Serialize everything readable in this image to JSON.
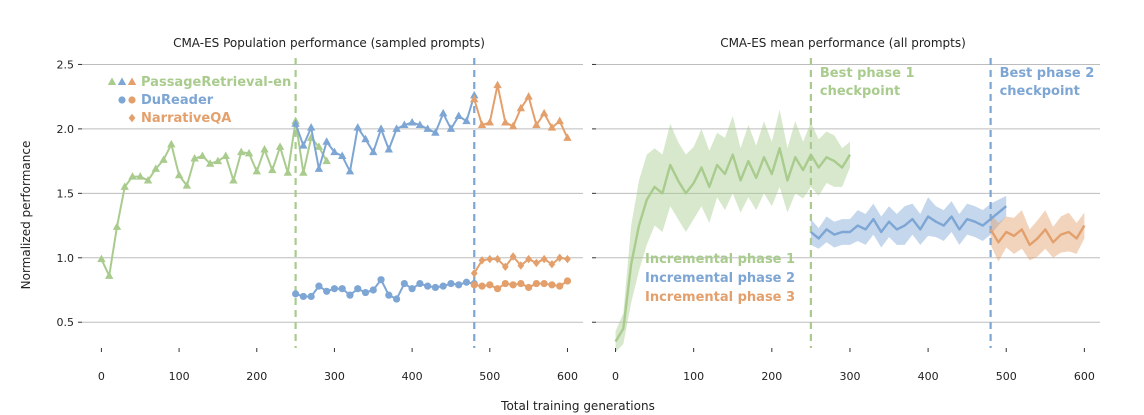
{
  "figure": {
    "ylabel": "Normalized performance",
    "xlabel": "Total training generations"
  },
  "colors": {
    "phase1": "#a9cc8e",
    "phase2": "#7ea6d4",
    "phase3": "#e3a06c",
    "grid": "#bdbdbd",
    "axis": "#333333"
  },
  "chart_data": [
    {
      "type": "line",
      "title": "CMA-ES Population performance (sampled prompts)",
      "xlim": [
        -25,
        620
      ],
      "ylim": [
        0.3,
        2.55
      ],
      "xticks": [
        0,
        100,
        200,
        300,
        400,
        500,
        600
      ],
      "yticks": [
        0.5,
        1.0,
        1.5,
        2.0,
        2.5
      ],
      "ytick_labels": [
        "0.5",
        "1.0",
        "1.5",
        "2.0",
        "2.5"
      ],
      "grid": "horizontal",
      "vlines": [
        {
          "x": 250,
          "color": "phase1"
        },
        {
          "x": 480,
          "color": "phase2"
        }
      ],
      "legend": {
        "position": "top-left",
        "entries": [
          {
            "label": "PassageRetrieval-en",
            "marker": "triangle",
            "colors": [
              "phase1",
              "phase2",
              "phase3"
            ]
          },
          {
            "label": "DuReader",
            "marker": "circle",
            "colors": [
              "phase2",
              "phase3"
            ]
          },
          {
            "label": "NarrativeQA",
            "marker": "diamond",
            "colors": [
              "phase3"
            ]
          }
        ]
      },
      "series": [
        {
          "name": "PassageRetrieval-en",
          "phase": 1,
          "color": "phase1",
          "marker": "triangle",
          "x": [
            0,
            10,
            20,
            30,
            40,
            50,
            60,
            70,
            80,
            90,
            100,
            110,
            120,
            130,
            140,
            150,
            160,
            170,
            180,
            190,
            200,
            210,
            220,
            230,
            240,
            250,
            260,
            270,
            280,
            290
          ],
          "y": [
            0.99,
            0.86,
            1.24,
            1.55,
            1.63,
            1.63,
            1.6,
            1.69,
            1.76,
            1.88,
            1.64,
            1.56,
            1.77,
            1.79,
            1.73,
            1.75,
            1.79,
            1.6,
            1.82,
            1.81,
            1.67,
            1.84,
            1.68,
            1.86,
            1.66,
            2.06,
            1.66,
            1.93,
            1.86,
            1.75
          ]
        },
        {
          "name": "PassageRetrieval-en",
          "phase": 2,
          "color": "phase2",
          "marker": "triangle",
          "x": [
            250,
            260,
            270,
            280,
            290,
            300,
            310,
            320,
            330,
            340,
            350,
            360,
            370,
            380,
            390,
            400,
            410,
            420,
            430,
            440,
            450,
            460,
            470,
            480
          ],
          "y": [
            2.04,
            1.87,
            2.01,
            1.69,
            1.9,
            1.82,
            1.79,
            1.67,
            2.01,
            1.92,
            1.82,
            2.0,
            1.84,
            2.0,
            2.03,
            2.05,
            2.03,
            2.0,
            1.97,
            2.12,
            2.0,
            2.1,
            2.06,
            2.26
          ]
        },
        {
          "name": "PassageRetrieval-en",
          "phase": 3,
          "color": "phase3",
          "marker": "triangle",
          "x": [
            480,
            490,
            500,
            510,
            520,
            530,
            540,
            550,
            560,
            570,
            580,
            590,
            600
          ],
          "y": [
            2.23,
            2.03,
            2.05,
            2.34,
            2.05,
            2.02,
            2.16,
            2.25,
            2.03,
            2.12,
            2.01,
            2.06,
            1.93
          ]
        },
        {
          "name": "DuReader",
          "phase": 2,
          "color": "phase2",
          "marker": "circle",
          "x": [
            250,
            260,
            270,
            280,
            290,
            300,
            310,
            320,
            330,
            340,
            350,
            360,
            370,
            380,
            390,
            400,
            410,
            420,
            430,
            440,
            450,
            460,
            470,
            480
          ],
          "y": [
            0.72,
            0.7,
            0.7,
            0.78,
            0.74,
            0.76,
            0.76,
            0.71,
            0.76,
            0.73,
            0.75,
            0.83,
            0.71,
            0.68,
            0.8,
            0.76,
            0.8,
            0.78,
            0.77,
            0.78,
            0.8,
            0.79,
            0.81,
            0.8
          ]
        },
        {
          "name": "DuReader",
          "phase": 3,
          "color": "phase3",
          "marker": "circle",
          "x": [
            480,
            490,
            500,
            510,
            520,
            530,
            540,
            550,
            560,
            570,
            580,
            590,
            600
          ],
          "y": [
            0.79,
            0.78,
            0.79,
            0.76,
            0.8,
            0.79,
            0.8,
            0.77,
            0.8,
            0.8,
            0.79,
            0.78,
            0.82
          ]
        },
        {
          "name": "NarrativeQA",
          "phase": 3,
          "color": "phase3",
          "marker": "diamond",
          "x": [
            480,
            490,
            500,
            510,
            520,
            530,
            540,
            550,
            560,
            570,
            580,
            590,
            600
          ],
          "y": [
            0.88,
            0.98,
            0.99,
            0.99,
            0.93,
            1.01,
            0.94,
            0.99,
            0.96,
            0.99,
            0.95,
            1.0,
            0.99
          ]
        }
      ]
    },
    {
      "type": "area",
      "title": "CMA-ES mean performance (all prompts)",
      "xlim": [
        -25,
        620
      ],
      "ylim": [
        0.3,
        2.55
      ],
      "xticks": [
        0,
        100,
        200,
        300,
        400,
        500,
        600
      ],
      "yticks": [
        0.5,
        1.0,
        1.5,
        2.0,
        2.5
      ],
      "grid": "horizontal",
      "vlines": [
        {
          "x": 250,
          "color": "phase1"
        },
        {
          "x": 480,
          "color": "phase2"
        }
      ],
      "annotations": [
        {
          "lines": [
            "Best phase 1",
            "checkpoint"
          ],
          "color": "phase1"
        },
        {
          "lines": [
            "Best phase 2",
            "checkpoint"
          ],
          "color": "phase2"
        }
      ],
      "legend": {
        "position": "lower-left",
        "entries": [
          {
            "label": "Incremental phase 1",
            "color": "phase1"
          },
          {
            "label": "Incremental phase 2",
            "color": "phase2"
          },
          {
            "label": "Incremental phase 3",
            "color": "phase3"
          }
        ]
      },
      "series": [
        {
          "name": "Incremental phase 1",
          "color": "phase1",
          "x": [
            0,
            10,
            20,
            30,
            40,
            50,
            60,
            70,
            80,
            90,
            100,
            110,
            120,
            130,
            140,
            150,
            160,
            170,
            180,
            190,
            200,
            210,
            220,
            230,
            240,
            250,
            260,
            270,
            280,
            290,
            300
          ],
          "y": [
            0.35,
            0.45,
            0.95,
            1.25,
            1.45,
            1.55,
            1.5,
            1.72,
            1.6,
            1.5,
            1.58,
            1.7,
            1.55,
            1.72,
            1.65,
            1.8,
            1.6,
            1.75,
            1.62,
            1.78,
            1.65,
            1.85,
            1.6,
            1.78,
            1.68,
            1.8,
            1.7,
            1.78,
            1.75,
            1.7,
            1.8
          ],
          "band": [
            0.08,
            0.12,
            0.3,
            0.35,
            0.35,
            0.3,
            0.3,
            0.32,
            0.3,
            0.3,
            0.28,
            0.3,
            0.28,
            0.25,
            0.28,
            0.3,
            0.25,
            0.28,
            0.25,
            0.28,
            0.25,
            0.3,
            0.25,
            0.28,
            0.22,
            0.25,
            0.22,
            0.2,
            0.2,
            0.15,
            0.1
          ]
        },
        {
          "name": "Incremental phase 2",
          "color": "phase2",
          "x": [
            250,
            260,
            270,
            280,
            290,
            300,
            310,
            320,
            330,
            340,
            350,
            360,
            370,
            380,
            390,
            400,
            410,
            420,
            430,
            440,
            450,
            460,
            470,
            480,
            490,
            500
          ],
          "y": [
            1.2,
            1.15,
            1.22,
            1.18,
            1.2,
            1.2,
            1.25,
            1.22,
            1.3,
            1.2,
            1.28,
            1.22,
            1.25,
            1.3,
            1.22,
            1.32,
            1.28,
            1.25,
            1.32,
            1.22,
            1.3,
            1.28,
            1.25,
            1.3,
            1.35,
            1.4
          ],
          "band": [
            0.1,
            0.08,
            0.1,
            0.1,
            0.1,
            0.1,
            0.12,
            0.12,
            0.12,
            0.12,
            0.12,
            0.12,
            0.15,
            0.12,
            0.12,
            0.15,
            0.12,
            0.12,
            0.12,
            0.12,
            0.12,
            0.12,
            0.12,
            0.12,
            0.1,
            0.08
          ]
        },
        {
          "name": "Incremental phase 3",
          "color": "phase3",
          "x": [
            480,
            490,
            500,
            510,
            520,
            530,
            540,
            550,
            560,
            570,
            580,
            590,
            600
          ],
          "y": [
            1.22,
            1.12,
            1.2,
            1.17,
            1.22,
            1.1,
            1.15,
            1.22,
            1.12,
            1.18,
            1.2,
            1.15,
            1.25
          ],
          "band": [
            0.12,
            0.15,
            0.12,
            0.14,
            0.15,
            0.12,
            0.14,
            0.15,
            0.12,
            0.14,
            0.15,
            0.12,
            0.1
          ]
        }
      ]
    }
  ]
}
